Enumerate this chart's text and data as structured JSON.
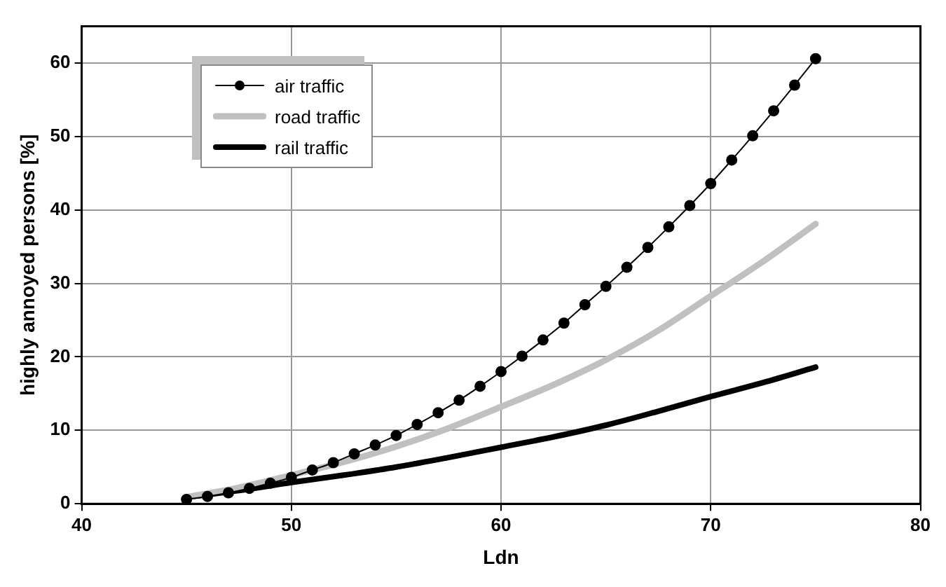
{
  "chart_data": {
    "type": "line",
    "xlabel": "Ldn",
    "ylabel": "highly annoyed persons [%]",
    "xlim": [
      40,
      80
    ],
    "xticks": [
      40,
      50,
      60,
      70,
      80
    ],
    "ylim": [
      0,
      65
    ],
    "yticks": [
      0,
      10,
      20,
      30,
      40,
      50,
      60
    ],
    "grid": true,
    "legend": "top left",
    "series": [
      {
        "name": "air traffic",
        "color": "#000000",
        "marker": "circle",
        "x": [
          45,
          46,
          47,
          48,
          49,
          50,
          51,
          52,
          53,
          54,
          55,
          56,
          57,
          58,
          59,
          60,
          61,
          62,
          63,
          64,
          65,
          66,
          67,
          68,
          69,
          70,
          71,
          72,
          73,
          74,
          75
        ],
        "values": [
          0.6,
          1.0,
          1.5,
          2.1,
          2.8,
          3.6,
          4.6,
          5.6,
          6.8,
          8.0,
          9.3,
          10.8,
          12.4,
          14.1,
          16.0,
          18.0,
          20.1,
          22.3,
          24.6,
          27.1,
          29.6,
          32.2,
          34.9,
          37.7,
          40.6,
          43.6,
          46.8,
          50.1,
          53.5,
          57.0,
          60.6
        ]
      },
      {
        "name": "road traffic",
        "color": "#c0c0c0",
        "marker": "none",
        "x": [
          45,
          47.5,
          50,
          52.5,
          55,
          57.5,
          60,
          62.5,
          65,
          67.5,
          70,
          72.5,
          75
        ],
        "values": [
          0.9,
          2.2,
          3.9,
          5.7,
          7.8,
          10.3,
          13.2,
          16.2,
          19.6,
          23.6,
          28.3,
          33.0,
          38.1
        ]
      },
      {
        "name": "rail traffic",
        "color": "#000000",
        "marker": "none",
        "x": [
          45,
          47.5,
          50,
          52.5,
          55,
          57.5,
          60,
          62.5,
          65,
          67.5,
          70,
          72.5,
          75
        ],
        "values": [
          0.9,
          1.8,
          2.9,
          3.9,
          5.0,
          6.3,
          7.7,
          9.1,
          10.7,
          12.6,
          14.6,
          16.5,
          18.6
        ]
      }
    ]
  }
}
